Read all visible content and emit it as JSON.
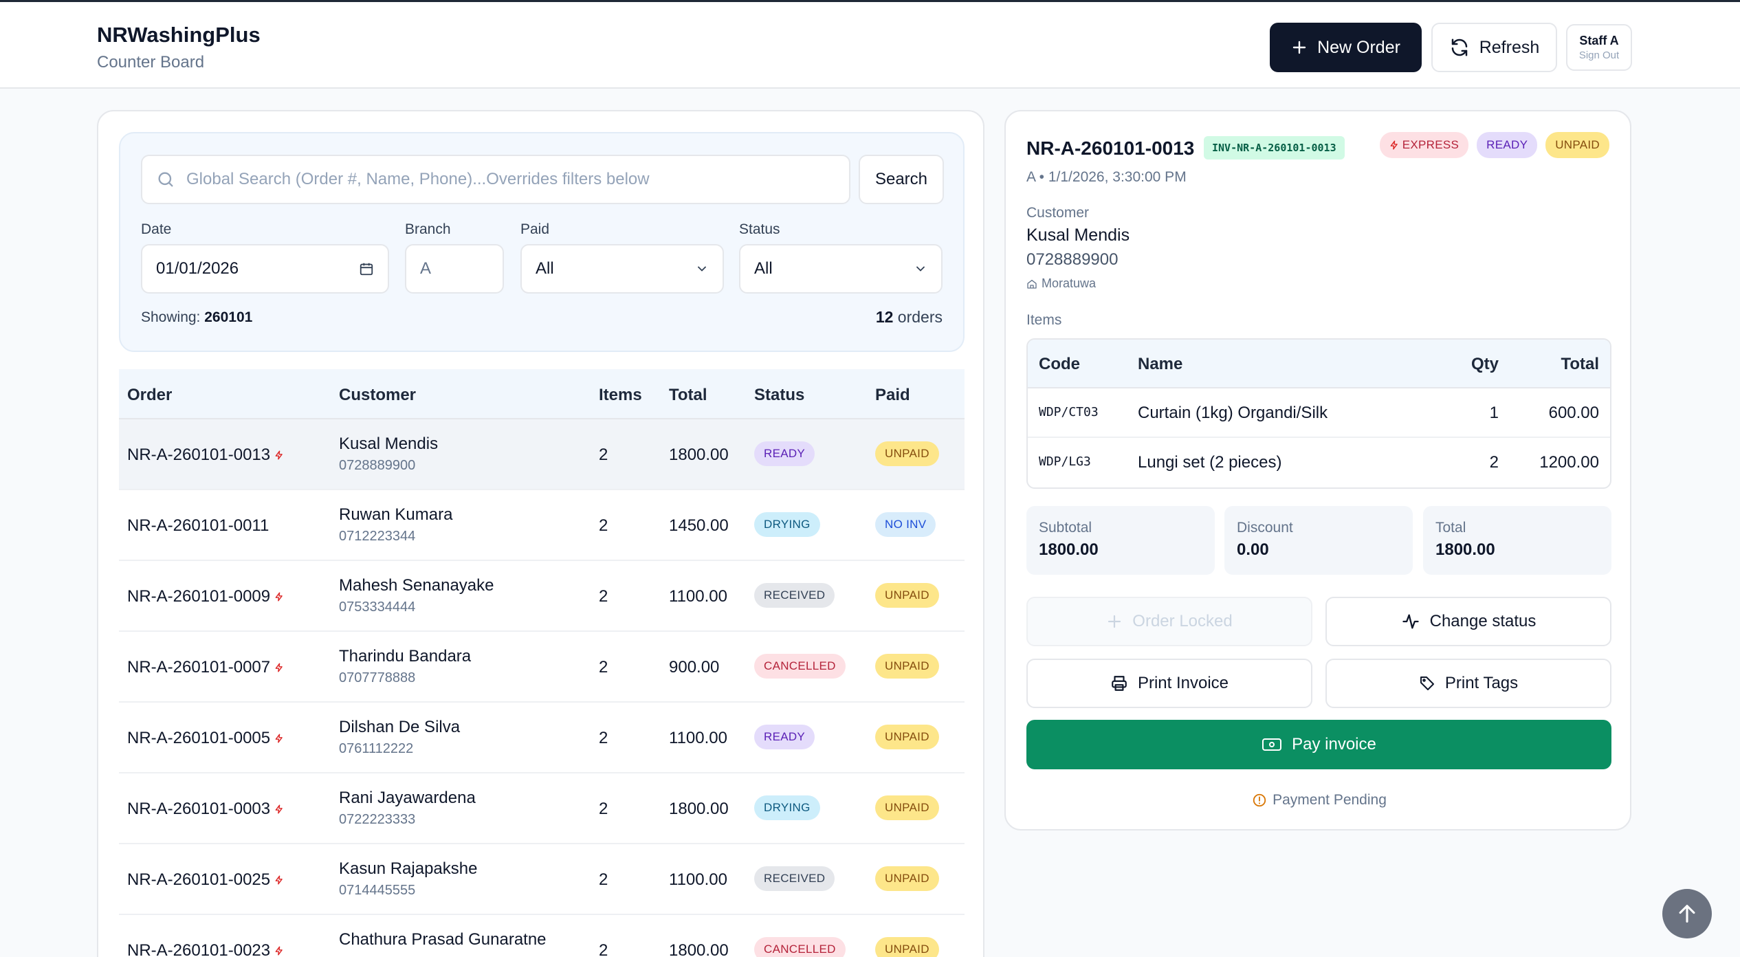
{
  "app": {
    "title": "NRWashingPlus",
    "subtitle": "Counter Board"
  },
  "header": {
    "new_order_label": "New Order",
    "refresh_label": "Refresh",
    "staff_name": "Staff A",
    "sign_out_label": "Sign Out"
  },
  "filters": {
    "search_placeholder": "Global Search (Order #, Name, Phone)...Overrides filters below",
    "search_button": "Search",
    "date_label": "Date",
    "date_value": "01/01/2026",
    "branch_label": "Branch",
    "branch_value": "A",
    "paid_label": "Paid",
    "paid_value": "All",
    "status_label": "Status",
    "status_value": "All",
    "showing_label": "Showing:",
    "showing_value": "260101",
    "count_value": "12",
    "count_label": "orders"
  },
  "table": {
    "headers": {
      "order": "Order",
      "customer": "Customer",
      "items": "Items",
      "total": "Total",
      "status": "Status",
      "paid": "Paid"
    },
    "rows": [
      {
        "order": "NR-A-260101-0013",
        "express": true,
        "name": "Kusal Mendis",
        "phone": "0728889900",
        "items": "2",
        "total": "1800.00",
        "status": "READY",
        "paid": "UNPAID"
      },
      {
        "order": "NR-A-260101-0011",
        "express": false,
        "name": "Ruwan Kumara",
        "phone": "0712223344",
        "items": "2",
        "total": "1450.00",
        "status": "DRYING",
        "paid": "NO INV"
      },
      {
        "order": "NR-A-260101-0009",
        "express": true,
        "name": "Mahesh Senanayake",
        "phone": "0753334444",
        "items": "2",
        "total": "1100.00",
        "status": "RECEIVED",
        "paid": "UNPAID"
      },
      {
        "order": "NR-A-260101-0007",
        "express": true,
        "name": "Tharindu Bandara",
        "phone": "0707778888",
        "items": "2",
        "total": "900.00",
        "status": "CANCELLED",
        "paid": "UNPAID"
      },
      {
        "order": "NR-A-260101-0005",
        "express": true,
        "name": "Dilshan De Silva",
        "phone": "0761112222",
        "items": "2",
        "total": "1100.00",
        "status": "READY",
        "paid": "UNPAID"
      },
      {
        "order": "NR-A-260101-0003",
        "express": true,
        "name": "Rani Jayawardena",
        "phone": "0722223333",
        "items": "2",
        "total": "1800.00",
        "status": "DRYING",
        "paid": "UNPAID"
      },
      {
        "order": "NR-A-260101-0025",
        "express": true,
        "name": "Kasun Rajapakshe",
        "phone": "0714445555",
        "items": "2",
        "total": "1100.00",
        "status": "RECEIVED",
        "paid": "UNPAID"
      },
      {
        "order": "NR-A-260101-0023",
        "express": true,
        "name": "Chathura Prasad Gunaratne",
        "phone": "",
        "items": "2",
        "total": "1800.00",
        "status": "CANCELLED",
        "paid": "UNPAID"
      }
    ]
  },
  "detail": {
    "order": "NR-A-260101-0013",
    "invoice": "INV-NR-A-260101-0013",
    "badges": {
      "express": "EXPRESS",
      "status": "READY",
      "paid": "UNPAID"
    },
    "meta": "A • 1/1/2026, 3:30:00 PM",
    "customer_label": "Customer",
    "customer_name": "Kusal Mendis",
    "customer_phone": "0728889900",
    "customer_location": "Moratuwa",
    "items_label": "Items",
    "items_headers": {
      "code": "Code",
      "name": "Name",
      "qty": "Qty",
      "total": "Total"
    },
    "items": [
      {
        "code": "WDP/CT03",
        "name": "Curtain (1kg) Organdi/Silk",
        "qty": "1",
        "total": "600.00"
      },
      {
        "code": "WDP/LG3",
        "name": "Lungi set (2 pieces)",
        "qty": "2",
        "total": "1200.00"
      }
    ],
    "summary": {
      "subtotal_label": "Subtotal",
      "subtotal": "1800.00",
      "discount_label": "Discount",
      "discount": "0.00",
      "total_label": "Total",
      "total": "1800.00"
    },
    "actions": {
      "locked": "Order Locked",
      "change_status": "Change status",
      "print_invoice": "Print Invoice",
      "print_tags": "Print Tags",
      "pay": "Pay invoice"
    },
    "pending": "Payment Pending"
  },
  "colors": {
    "primary": "#0f172a",
    "pay": "#0b8f62",
    "express": "#dc2626"
  }
}
